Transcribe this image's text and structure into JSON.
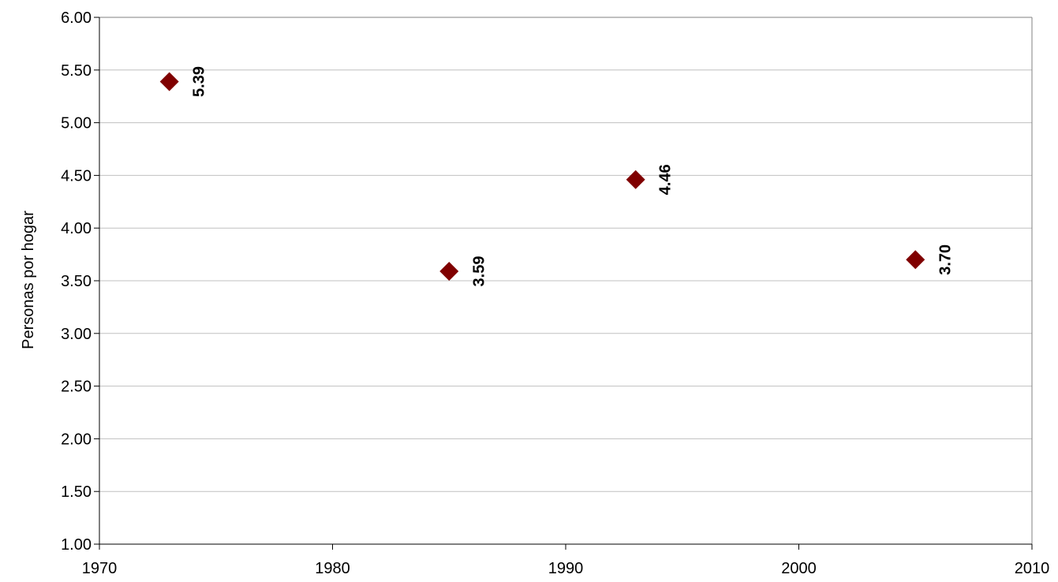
{
  "chart_data": {
    "type": "scatter",
    "title": "",
    "xlabel": "",
    "ylabel": "Personas por hogar",
    "xlim": [
      1970,
      2010
    ],
    "ylim": [
      1.0,
      6.0
    ],
    "x_ticks": [
      "1970",
      "1980",
      "1990",
      "2000",
      "2010"
    ],
    "y_ticks": [
      "1.00",
      "1.50",
      "2.00",
      "2.50",
      "3.00",
      "3.50",
      "4.00",
      "4.50",
      "5.00",
      "5.50",
      "6.00"
    ],
    "grid": true,
    "legend": "none",
    "marker": "diamond",
    "series": [
      {
        "x": [
          1973,
          1985,
          1993,
          2005
        ],
        "y": [
          5.39,
          3.59,
          4.46,
          3.7
        ],
        "labels": [
          "5.39",
          "3.59",
          "4.46",
          "3.70"
        ]
      }
    ],
    "colors": {
      "marker": "#800000",
      "grid": "#c0c0c0",
      "axis": "#000000"
    }
  }
}
